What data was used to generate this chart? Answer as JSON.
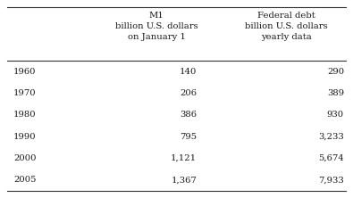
{
  "col1_header": [
    "M1",
    "billion U.S. dollars",
    "on January 1"
  ],
  "col2_header": [
    "Federal debt",
    "billion U.S. dollars",
    "yearly data"
  ],
  "rows": [
    [
      "1960",
      "140",
      "290"
    ],
    [
      "1970",
      "206",
      "389"
    ],
    [
      "1980",
      "386",
      "930"
    ],
    [
      "1990",
      "795",
      "3,233"
    ],
    [
      "2000",
      "1,121",
      "5,674"
    ],
    [
      "2005",
      "1,367",
      "7,933"
    ]
  ],
  "bg_color": "#ffffff",
  "text_color": "#1a1a1a",
  "line_color": "#333333",
  "font_size": 7.2,
  "header_font_size": 7.2
}
